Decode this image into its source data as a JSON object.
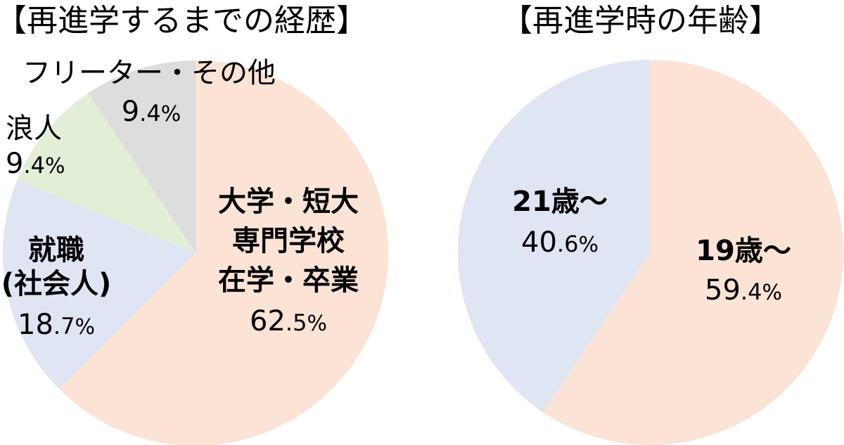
{
  "chart_data": [
    {
      "type": "pie",
      "title": "【再進学するまでの経歴】",
      "start": "12-o'clock",
      "direction": "clockwise",
      "slices": [
        {
          "lines": [
            "大学・短大",
            "専門学校",
            "在学・卒業"
          ],
          "value": 62.5,
          "pct_int": "62",
          "pct_dec": ".5",
          "pct_sign": "%",
          "color": "#fbe3d6",
          "bold": true
        },
        {
          "lines": [
            "就職",
            "(社会人)"
          ],
          "value": 18.7,
          "pct_int": "18",
          "pct_dec": ".7",
          "pct_sign": "%",
          "color": "#e0e5f3",
          "bold": true
        },
        {
          "lines": [
            "浪人"
          ],
          "value": 9.4,
          "pct_int": "9",
          "pct_dec": ".4",
          "pct_sign": "%",
          "color": "#e2efd6",
          "bold": false
        },
        {
          "lines": [
            "フリーター・その他"
          ],
          "value": 9.4,
          "pct_int": "9",
          "pct_dec": ".4",
          "pct_sign": "%",
          "color": "#dddddd",
          "bold": false
        }
      ]
    },
    {
      "type": "pie",
      "title": "【再進学時の年齢】",
      "start": "12-o'clock",
      "direction": "clockwise",
      "slices": [
        {
          "lines": [
            "19歳～"
          ],
          "value": 59.4,
          "pct_int": "59",
          "pct_dec": ".4",
          "pct_sign": "%",
          "color": "#fbe3d6",
          "bold": true
        },
        {
          "lines": [
            "21歳～"
          ],
          "value": 40.6,
          "pct_int": "40",
          "pct_dec": ".6",
          "pct_sign": "%",
          "color": "#e0e5f3",
          "bold": true
        }
      ]
    }
  ]
}
